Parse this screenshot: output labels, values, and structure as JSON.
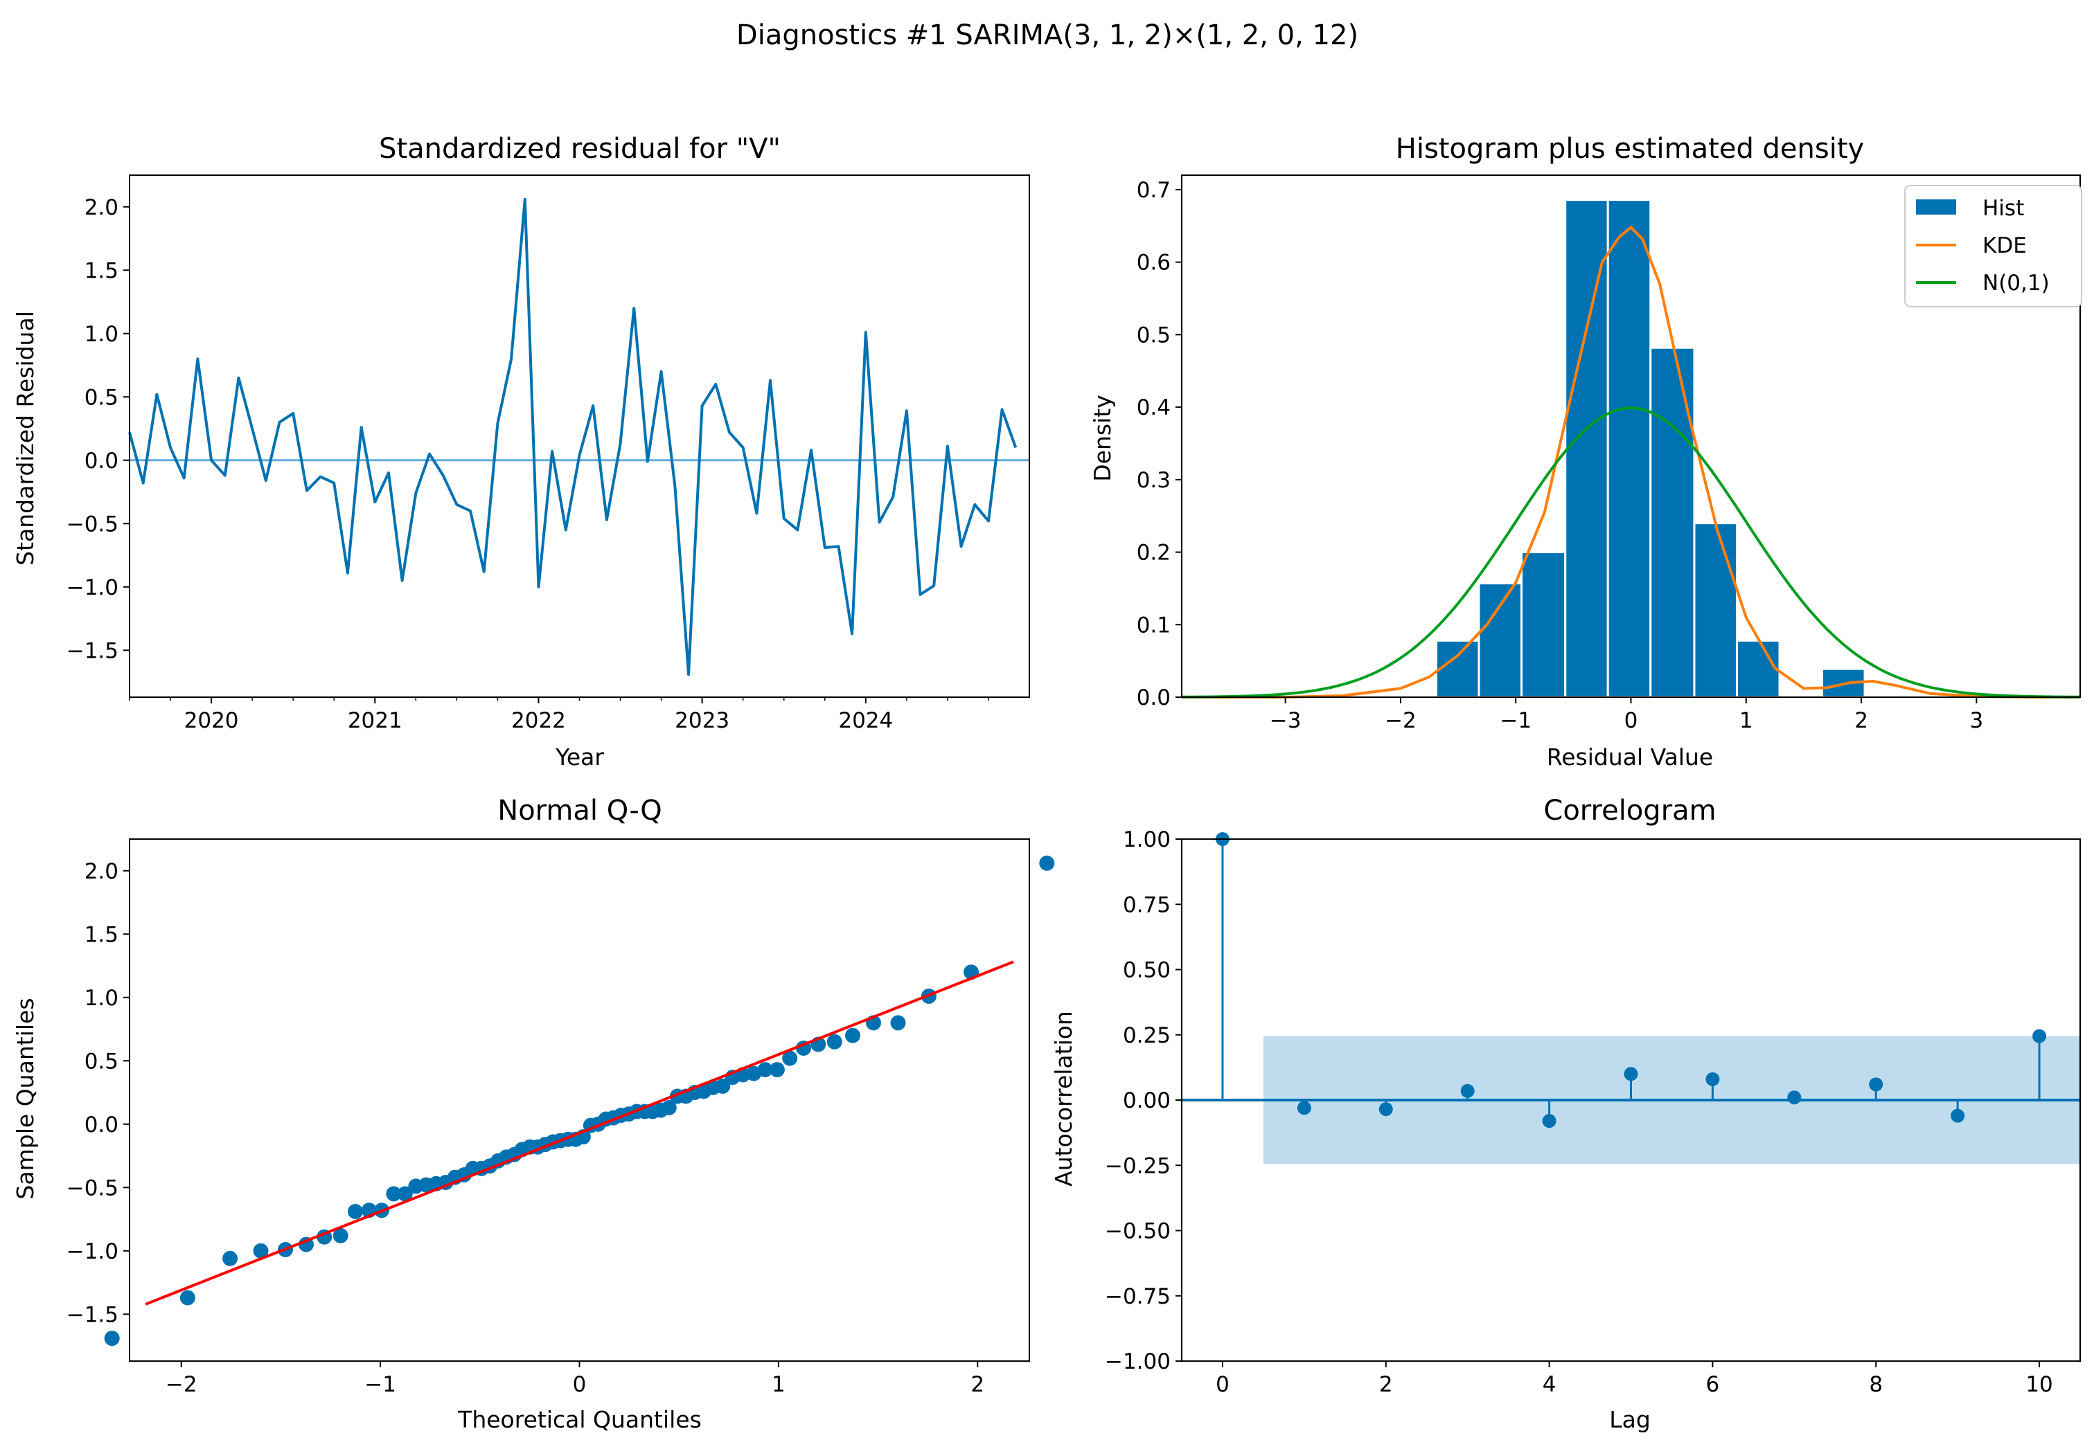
{
  "suptitle": "Diagnostics #1  SARIMA(3, 1, 2)×(1, 2, 0, 12)",
  "colors": {
    "blue": "#0072b2",
    "orange": "#ff7f0e",
    "green": "#009e1f",
    "red": "#ff0000",
    "light_blue": "#62aede",
    "band": "#bedcee"
  },
  "chart_data": [
    {
      "id": "residual",
      "type": "line",
      "title": "Standardized residual for \"V\"",
      "xlabel": "Year",
      "ylabel": "Standardized Residual",
      "xlim": [
        0,
        66
      ],
      "ylim": [
        -1.87,
        2.25
      ],
      "x_ticks": [
        {
          "x": 6,
          "label": "2020"
        },
        {
          "x": 18,
          "label": "2021"
        },
        {
          "x": 30,
          "label": "2022"
        },
        {
          "x": 42,
          "label": "2023"
        },
        {
          "x": 54,
          "label": "2024"
        }
      ],
      "y_ticks": [
        {
          "v": -1.5,
          "label": "−1.5"
        },
        {
          "v": -1.0,
          "label": "−1.0"
        },
        {
          "v": -0.5,
          "label": "−0.5"
        },
        {
          "v": 0.0,
          "label": "0.0"
        },
        {
          "v": 0.5,
          "label": "0.5"
        },
        {
          "v": 1.0,
          "label": "1.0"
        },
        {
          "v": 1.5,
          "label": "1.5"
        },
        {
          "v": 2.0,
          "label": "2.0"
        }
      ],
      "reference_y": 0,
      "series": [
        {
          "name": "Standardized residual",
          "values": [
            0.22,
            -0.18,
            0.52,
            0.1,
            -0.14,
            0.8,
            0.0,
            -0.12,
            0.65,
            0.25,
            -0.16,
            0.3,
            0.37,
            -0.24,
            -0.13,
            -0.18,
            -0.89,
            0.26,
            -0.33,
            -0.1,
            -0.95,
            -0.26,
            0.05,
            -0.12,
            -0.35,
            -0.4,
            -0.88,
            0.29,
            0.8,
            2.06,
            -1.0,
            0.07,
            -0.55,
            0.04,
            0.43,
            -0.47,
            0.13,
            1.2,
            -0.01,
            0.7,
            -0.2,
            -1.69,
            0.43,
            0.6,
            0.22,
            0.1,
            -0.42,
            0.63,
            -0.46,
            -0.55,
            0.08,
            -0.69,
            -0.68,
            -1.37,
            1.01,
            -0.49,
            -0.29,
            0.39,
            -1.06,
            -0.99,
            0.11,
            -0.68,
            -0.35,
            -0.48,
            0.4,
            0.1
          ]
        }
      ]
    },
    {
      "id": "histogram",
      "type": "bar",
      "title": "Histogram plus estimated density",
      "xlabel": "Residual Value",
      "ylabel": "Density",
      "xlim": [
        -3.9,
        3.9
      ],
      "ylim": [
        0,
        0.72
      ],
      "x_ticks": [
        {
          "v": -3,
          "label": "−3"
        },
        {
          "v": -2,
          "label": "−2"
        },
        {
          "v": -1,
          "label": "−1"
        },
        {
          "v": 0,
          "label": "0"
        },
        {
          "v": 1,
          "label": "1"
        },
        {
          "v": 2,
          "label": "2"
        },
        {
          "v": 3,
          "label": "3"
        }
      ],
      "y_ticks": [
        {
          "v": 0.0,
          "label": "0.0"
        },
        {
          "v": 0.1,
          "label": "0.1"
        },
        {
          "v": 0.2,
          "label": "0.2"
        },
        {
          "v": 0.3,
          "label": "0.3"
        },
        {
          "v": 0.4,
          "label": "0.4"
        },
        {
          "v": 0.5,
          "label": "0.5"
        },
        {
          "v": 0.6,
          "label": "0.6"
        },
        {
          "v": 0.7,
          "label": "0.7"
        }
      ],
      "bins": [
        {
          "x0": -1.69,
          "x1": -1.32,
          "density": 0.078
        },
        {
          "x0": -1.32,
          "x1": -0.95,
          "density": 0.157
        },
        {
          "x0": -0.95,
          "x1": -0.57,
          "density": 0.2
        },
        {
          "x0": -0.57,
          "x1": -0.2,
          "density": 0.686
        },
        {
          "x0": -0.2,
          "x1": 0.17,
          "density": 0.686
        },
        {
          "x0": 0.17,
          "x1": 0.55,
          "density": 0.482
        },
        {
          "x0": 0.55,
          "x1": 0.92,
          "density": 0.24
        },
        {
          "x0": 0.92,
          "x1": 1.29,
          "density": 0.078
        },
        {
          "x0": 1.29,
          "x1": 1.66,
          "density": 0.0
        },
        {
          "x0": 1.66,
          "x1": 2.03,
          "density": 0.039
        }
      ],
      "kde": {
        "x": [
          -3.9,
          -3.0,
          -2.5,
          -2.0,
          -1.75,
          -1.5,
          -1.25,
          -1.0,
          -0.75,
          -0.5,
          -0.25,
          -0.1,
          0.0,
          0.1,
          0.25,
          0.5,
          0.75,
          1.0,
          1.25,
          1.5,
          1.7,
          1.9,
          2.1,
          2.3,
          2.6,
          3.0,
          3.5,
          3.9
        ],
        "y": [
          0.0,
          0.0,
          0.002,
          0.012,
          0.028,
          0.058,
          0.1,
          0.158,
          0.255,
          0.43,
          0.6,
          0.635,
          0.648,
          0.632,
          0.57,
          0.39,
          0.23,
          0.11,
          0.04,
          0.012,
          0.013,
          0.02,
          0.022,
          0.016,
          0.005,
          0.001,
          0.0,
          0.0
        ]
      },
      "normal_pdf": {
        "mean": 0,
        "sd": 1
      },
      "legend": {
        "position": "top-right",
        "entries": [
          {
            "label": "Hist",
            "kind": "patch",
            "color": "#0072b2"
          },
          {
            "label": "KDE",
            "kind": "line",
            "color": "#ff7f0e"
          },
          {
            "label": "N(0,1)",
            "kind": "line",
            "color": "#009e1f"
          }
        ]
      }
    },
    {
      "id": "qq",
      "type": "scatter",
      "title": "Normal Q-Q",
      "xlabel": "Theoretical Quantiles",
      "ylabel": "Sample Quantiles",
      "xlim": [
        -2.26,
        2.26
      ],
      "ylim": [
        -1.87,
        2.25
      ],
      "x_ticks": [
        {
          "v": -2,
          "label": "−2"
        },
        {
          "v": -1,
          "label": "−1"
        },
        {
          "v": 0,
          "label": "0"
        },
        {
          "v": 1,
          "label": "1"
        },
        {
          "v": 2,
          "label": "2"
        }
      ],
      "y_ticks": [
        {
          "v": -1.5,
          "label": "−1.5"
        },
        {
          "v": -1.0,
          "label": "−1.0"
        },
        {
          "v": -0.5,
          "label": "−0.5"
        },
        {
          "v": 0.0,
          "label": "0.0"
        },
        {
          "v": 0.5,
          "label": "0.5"
        },
        {
          "v": 1.0,
          "label": "1.0"
        },
        {
          "v": 1.5,
          "label": "1.5"
        },
        {
          "v": 2.0,
          "label": "2.0"
        }
      ],
      "reference_line": {
        "slope": 0.62,
        "intercept": -0.07
      },
      "points_note": "sorted residuals vs. theoretical normal quantiles"
    },
    {
      "id": "correlogram",
      "type": "stem",
      "title": "Correlogram",
      "xlabel": "Lag",
      "ylabel": "Autocorrelation",
      "xlim": [
        -0.5,
        10.5
      ],
      "ylim": [
        -1.0,
        1.0
      ],
      "x_ticks": [
        {
          "v": 0,
          "label": "0"
        },
        {
          "v": 2,
          "label": "2"
        },
        {
          "v": 4,
          "label": "4"
        },
        {
          "v": 6,
          "label": "6"
        },
        {
          "v": 8,
          "label": "8"
        },
        {
          "v": 10,
          "label": "10"
        }
      ],
      "y_ticks": [
        {
          "v": -1.0,
          "label": "−1.00"
        },
        {
          "v": -0.75,
          "label": "−0.75"
        },
        {
          "v": -0.5,
          "label": "−0.50"
        },
        {
          "v": -0.25,
          "label": "−0.25"
        },
        {
          "v": 0.0,
          "label": "0.00"
        },
        {
          "v": 0.25,
          "label": "0.25"
        },
        {
          "v": 0.5,
          "label": "0.50"
        },
        {
          "v": 0.75,
          "label": "0.75"
        },
        {
          "v": 1.0,
          "label": "1.00"
        }
      ],
      "lags": [
        0,
        1,
        2,
        3,
        4,
        5,
        6,
        7,
        8,
        9,
        10
      ],
      "values": [
        1.0,
        -0.03,
        -0.035,
        0.035,
        -0.08,
        0.1,
        0.08,
        0.01,
        0.06,
        -0.06,
        0.245
      ],
      "confidence_band": {
        "lower": -0.245,
        "upper": 0.245,
        "from_lag": 0.5,
        "to_lag": 10.5
      }
    }
  ]
}
